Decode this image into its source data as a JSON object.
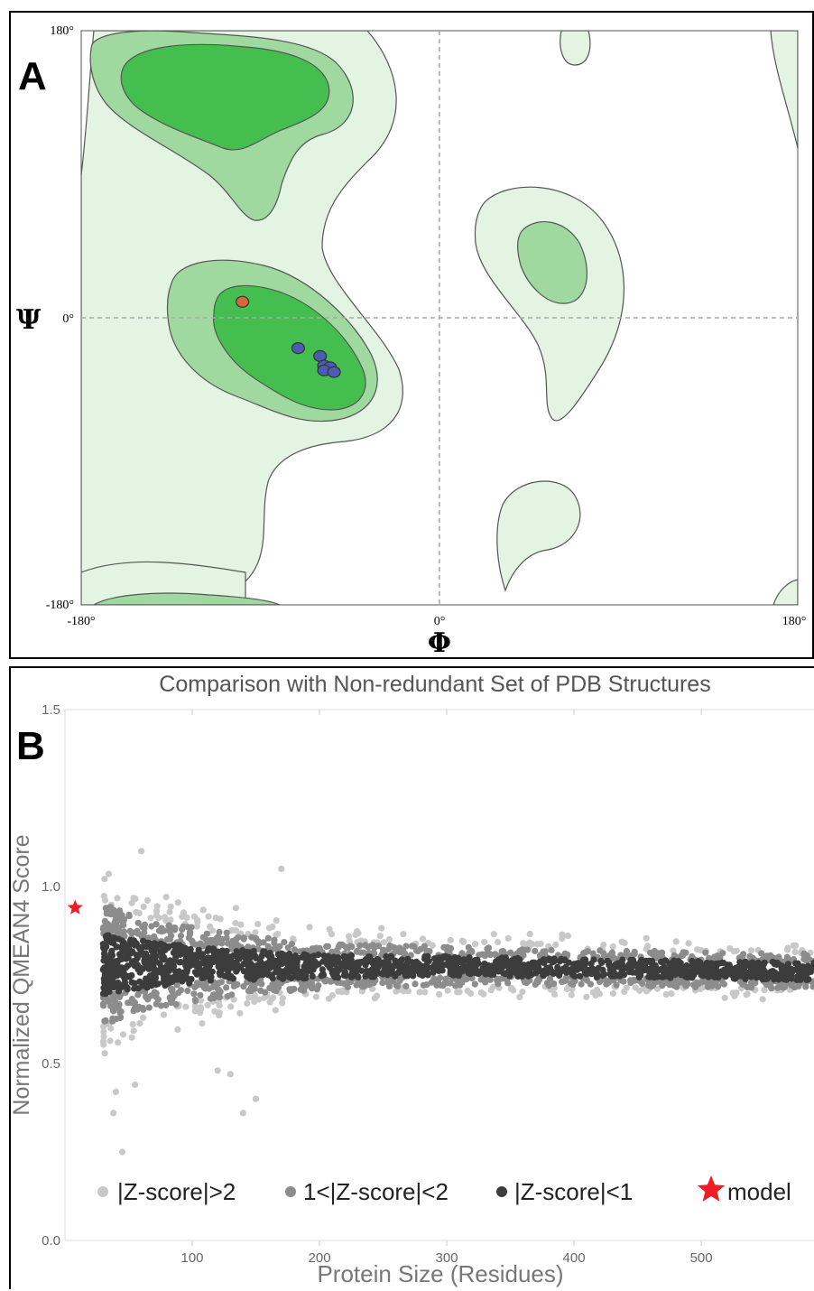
{
  "panelA": {
    "letter": "A",
    "chart_data": {
      "type": "scatter",
      "title": "",
      "xlabel": "Φ",
      "ylabel": "Ψ",
      "xlim": [
        -180,
        180
      ],
      "ylim": [
        -180,
        180
      ],
      "x_tick_labels": [
        "-180°",
        "0°",
        "180°"
      ],
      "y_tick_labels": [
        "180°",
        "0°",
        "-180°"
      ],
      "series": [
        {
          "color": "#4a5db0",
          "points": [
            [
              -71,
              -19
            ],
            [
              -60,
              -24
            ],
            [
              -58,
              -30
            ],
            [
              -55,
              -31
            ],
            [
              -58,
              -33
            ],
            [
              -53,
              -34
            ]
          ]
        },
        {
          "color": "#d06a3a",
          "points": [
            [
              -99,
              10
            ]
          ]
        }
      ],
      "region_colors": {
        "favoured": "#45be50",
        "allowed": "#a0d9a0",
        "generous": "#e3f4e3"
      }
    }
  },
  "panelB": {
    "letter": "B",
    "chart_data": {
      "type": "scatter",
      "title": "Comparison with Non-redundant Set of PDB Structures",
      "xlabel": "Protein Size (Residues)",
      "ylabel": "Normalized QMEAN4 Score",
      "xlim": [
        0,
        590
      ],
      "ylim": [
        0,
        1.5
      ],
      "x_ticks": [
        100,
        200,
        300,
        400,
        500
      ],
      "y_ticks": [
        "0.0",
        "0.5",
        "1.0",
        "1.5"
      ],
      "reference_trend": {
        "x": [
          30,
          100,
          200,
          300,
          400,
          500,
          590
        ],
        "mean": [
          0.78,
          0.78,
          0.775,
          0.775,
          0.77,
          0.765,
          0.76
        ]
      },
      "legend": [
        {
          "label": "|Z-score|>2",
          "color": "#c8c8c8",
          "marker": "circle"
        },
        {
          "label": "1<|Z-score|<2",
          "color": "#8c8c8c",
          "marker": "circle"
        },
        {
          "label": "|Z-score|<1",
          "color": "#3c3c3c",
          "marker": "circle"
        },
        {
          "label": "model",
          "color": "#ee1c25",
          "marker": "star"
        }
      ],
      "model": {
        "x": 8,
        "y": 0.94
      },
      "outliers": [
        [
          60,
          1.1
        ],
        [
          170,
          1.05
        ],
        [
          45,
          0.25
        ],
        [
          38,
          0.36
        ],
        [
          140,
          0.36
        ],
        [
          150,
          0.4
        ],
        [
          40,
          0.42
        ],
        [
          55,
          0.44
        ],
        [
          120,
          0.48
        ],
        [
          130,
          0.47
        ]
      ]
    }
  }
}
